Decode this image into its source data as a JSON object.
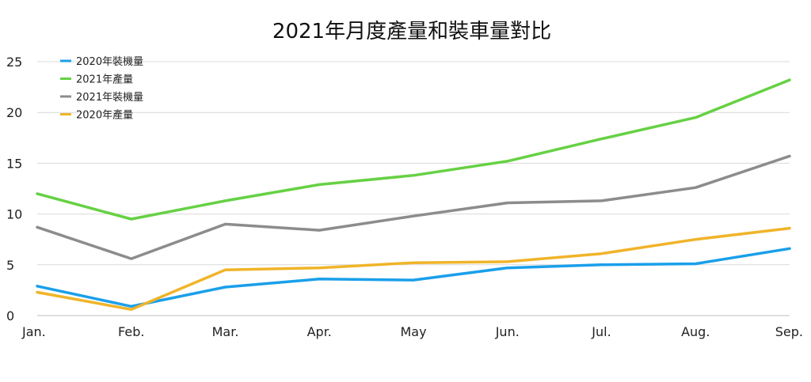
{
  "chart_data": {
    "type": "line",
    "title": "2021年月度產量和裝車量對比",
    "categories": [
      "Jan.",
      "Feb.",
      "Mar.",
      "Apr.",
      "May",
      "Jun.",
      "Jul.",
      "Aug.",
      "Sep."
    ],
    "ylim": [
      0,
      25
    ],
    "yticks": [
      0,
      5,
      10,
      15,
      20,
      25
    ],
    "grid": true,
    "legend_position": "top-left",
    "series": [
      {
        "name": "2020年裝機量",
        "color": "#1a9fea",
        "values": [
          2.9,
          0.9,
          2.8,
          3.6,
          3.5,
          4.7,
          5.0,
          5.1,
          6.6
        ]
      },
      {
        "name": "2021年產量",
        "color": "#66d144",
        "values": [
          12.0,
          9.5,
          11.3,
          12.9,
          13.8,
          15.2,
          17.4,
          19.5,
          23.2
        ]
      },
      {
        "name": "2021年裝機量",
        "color": "#8c8c8c",
        "values": [
          8.7,
          5.6,
          9.0,
          8.4,
          9.8,
          11.1,
          11.3,
          12.6,
          15.7
        ]
      },
      {
        "name": "2020年產量",
        "color": "#f0b429",
        "values": [
          2.3,
          0.6,
          4.5,
          4.7,
          5.2,
          5.3,
          6.1,
          7.5,
          8.6
        ]
      }
    ]
  }
}
